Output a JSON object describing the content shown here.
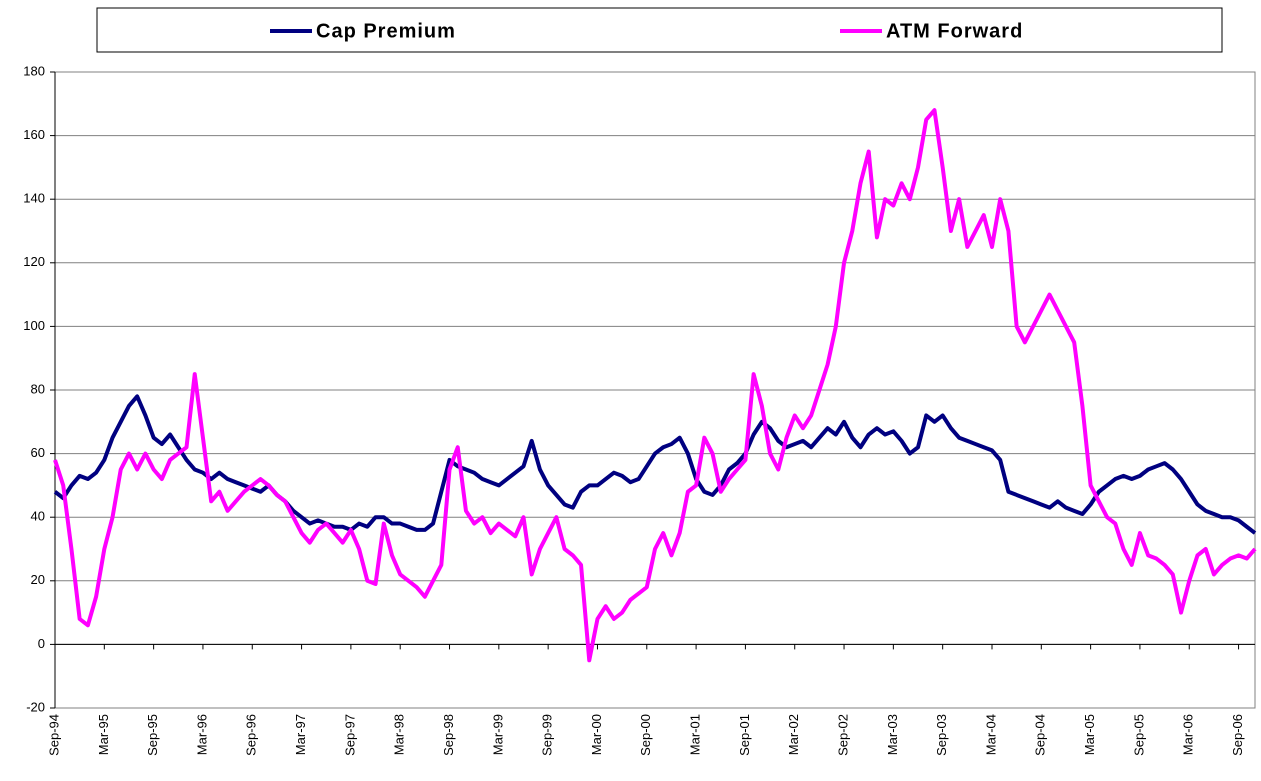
{
  "chart_data": {
    "type": "line",
    "categories": [
      "Sep-94",
      null,
      null,
      null,
      null,
      null,
      "Mar-95",
      null,
      null,
      null,
      null,
      null,
      "Sep-95",
      null,
      null,
      null,
      null,
      null,
      "Mar-96",
      null,
      null,
      null,
      null,
      null,
      "Sep-96",
      null,
      null,
      null,
      null,
      null,
      "Mar-97",
      null,
      null,
      null,
      null,
      null,
      "Sep-97",
      null,
      null,
      null,
      null,
      null,
      "Mar-98",
      null,
      null,
      null,
      null,
      null,
      "Sep-98",
      null,
      null,
      null,
      null,
      null,
      "Mar-99",
      null,
      null,
      null,
      null,
      null,
      "Sep-99",
      null,
      null,
      null,
      null,
      null,
      "Mar-00",
      null,
      null,
      null,
      null,
      null,
      "Sep-00",
      null,
      null,
      null,
      null,
      null,
      "Mar-01",
      null,
      null,
      null,
      null,
      null,
      "Sep-01",
      null,
      null,
      null,
      null,
      null,
      "Mar-02",
      null,
      null,
      null,
      null,
      null,
      "Sep-02",
      null,
      null,
      null,
      null,
      null,
      "Mar-03",
      null,
      null,
      null,
      null,
      null,
      "Sep-03",
      null,
      null,
      null,
      null,
      null,
      "Mar-04",
      null,
      null,
      null,
      null,
      null,
      "Sep-04",
      null,
      null,
      null,
      null,
      null,
      "Mar-05",
      null,
      null,
      null,
      null,
      null,
      "Sep-05",
      null,
      null,
      null,
      null,
      null,
      "Mar-06",
      null,
      null,
      null,
      null,
      null,
      "Sep-06",
      null,
      null
    ],
    "series": [
      {
        "name": "Cap Premium",
        "color": "#000080",
        "values": [
          48,
          46,
          50,
          53,
          52,
          54,
          58,
          65,
          70,
          75,
          78,
          72,
          65,
          63,
          66,
          62,
          58,
          55,
          54,
          52,
          54,
          52,
          51,
          50,
          49,
          48,
          50,
          47,
          45,
          42,
          40,
          38,
          39,
          38,
          37,
          37,
          36,
          38,
          37,
          40,
          40,
          38,
          38,
          37,
          36,
          36,
          38,
          48,
          58,
          56,
          55,
          54,
          52,
          51,
          50,
          52,
          54,
          56,
          64,
          55,
          50,
          47,
          44,
          43,
          48,
          50,
          50,
          52,
          54,
          53,
          51,
          52,
          56,
          60,
          62,
          63,
          65,
          60,
          52,
          48,
          47,
          50,
          55,
          57,
          60,
          66,
          70,
          68,
          64,
          62,
          63,
          64,
          62,
          65,
          68,
          66,
          70,
          65,
          62,
          66,
          68,
          66,
          67,
          64,
          60,
          62,
          72,
          70,
          72,
          68,
          65,
          64,
          63,
          62,
          61,
          58,
          48,
          47,
          46,
          45,
          44,
          43,
          45,
          43,
          42,
          41,
          44,
          48,
          50,
          52,
          53,
          52,
          53,
          55,
          56,
          57,
          55,
          52,
          48,
          44,
          42,
          41,
          40,
          40,
          39,
          37,
          35
        ]
      },
      {
        "name": "ATM Forward",
        "color": "#ff00ff",
        "values": [
          58,
          50,
          30,
          8,
          6,
          15,
          30,
          40,
          55,
          60,
          55,
          60,
          55,
          52,
          58,
          60,
          62,
          85,
          65,
          45,
          48,
          42,
          45,
          48,
          50,
          52,
          50,
          47,
          45,
          40,
          35,
          32,
          36,
          38,
          35,
          32,
          36,
          30,
          20,
          19,
          38,
          28,
          22,
          20,
          18,
          15,
          20,
          25,
          55,
          62,
          42,
          38,
          40,
          35,
          38,
          36,
          34,
          40,
          22,
          30,
          35,
          40,
          30,
          28,
          25,
          -5,
          8,
          12,
          8,
          10,
          14,
          16,
          18,
          30,
          35,
          28,
          35,
          48,
          50,
          65,
          60,
          48,
          52,
          55,
          58,
          85,
          75,
          60,
          55,
          65,
          72,
          68,
          72,
          80,
          88,
          100,
          120,
          130,
          145,
          155,
          128,
          140,
          138,
          145,
          140,
          150,
          165,
          168,
          150,
          130,
          140,
          125,
          130,
          135,
          125,
          140,
          130,
          100,
          95,
          100,
          105,
          110,
          105,
          100,
          95,
          75,
          50,
          45,
          40,
          38,
          30,
          25,
          35,
          28,
          27,
          25,
          22,
          10,
          20,
          28,
          30,
          22,
          25,
          27,
          28,
          27,
          30
        ]
      }
    ],
    "ylim": [
      -20,
      180
    ],
    "yticks": [
      -20,
      0,
      20,
      40,
      60,
      80,
      100,
      120,
      140,
      160,
      180
    ],
    "grid": true,
    "legend": "top"
  }
}
